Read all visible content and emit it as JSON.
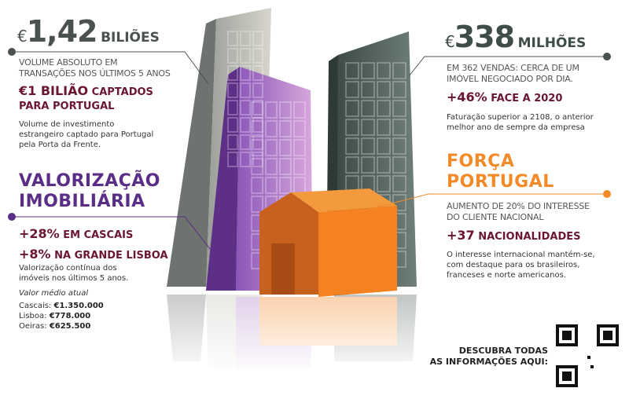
{
  "left_top": {
    "currency": "€",
    "value": "1,42",
    "unit": "BILIÕES",
    "subtitle": [
      "VOLUME ABSOLUTO EM",
      "TRANSAÇÕES NOS ÚLTIMOS 5 ANOS"
    ],
    "highlight_value": "€1 BILIÃO",
    "highlight_rest": "CAPTADOS",
    "highlight_line2": "PARA PORTUGAL",
    "body": [
      "Volume de investimento",
      "estrangeiro captado para Portugal",
      "pela Porta da Frente."
    ]
  },
  "left_bottom": {
    "title": [
      "VALORIZAÇÃO",
      "IMOBILIÁRIA"
    ],
    "stat1_value": "+28%",
    "stat1_label": "EM CASCAIS",
    "stat2_value": "+8%",
    "stat2_label": "NA GRANDE LISBOA",
    "body": [
      "Valorização contínua dos",
      "imóveis nos últimos 5 anos."
    ],
    "avg_label": "Valor médio atual",
    "prices": [
      {
        "place": "Cascais:",
        "value": "€1.350.000"
      },
      {
        "place": "Lisboa:",
        "value": "€778.000"
      },
      {
        "place": "Oeiras:",
        "value": "€625.500"
      }
    ]
  },
  "right_top": {
    "currency": "€",
    "value": "338",
    "unit": "MILHÕES",
    "subtitle": [
      "EM 362 VENDAS: CERCA DE UM",
      "IMÓVEL NEGOCIADO POR DIA."
    ],
    "highlight_value": "+46%",
    "highlight_rest": "FACE A 2020",
    "body": [
      "Faturação superior a 2108, o anterior",
      "melhor ano de sempre da empresa"
    ]
  },
  "right_bottom": {
    "title": [
      "FORÇA",
      "PORTUGAL"
    ],
    "subtitle": [
      "AUMENTO DE 20% DO INTERESSE",
      "DO CLIENTE NACIONAL"
    ],
    "highlight_value": "+37",
    "highlight_rest": "NACIONALIDADES",
    "body": [
      "O interesse internacional mantém-se,",
      "com destaque para os brasileiros,",
      "franceses e norte americanos."
    ]
  },
  "cta": {
    "lines": [
      "DESCUBRA TODAS",
      "AS INFORMAÇÕES AQUI:"
    ],
    "icon": "qr-code-icon"
  },
  "colors": {
    "gray": "#4a5250",
    "maroon": "#6b1630",
    "purple": "#5a2d86",
    "orange": "#f28a28",
    "dark_green": "#3f4d4a"
  }
}
